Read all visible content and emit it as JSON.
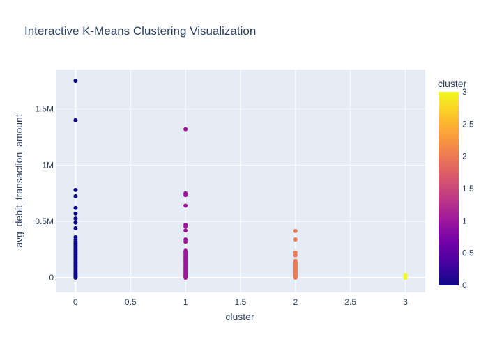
{
  "chart_data": {
    "type": "scatter",
    "title": "Interactive K-Means Clustering Visualization",
    "xlabel": "cluster",
    "ylabel": "avg_debit_transaction_amount",
    "xlim": [
      -0.18,
      3.18
    ],
    "ylim": [
      -130000,
      1850000
    ],
    "x_ticks": [
      0,
      0.5,
      1,
      1.5,
      2,
      2.5,
      3
    ],
    "x_tick_labels": [
      "0",
      "0.5",
      "1",
      "1.5",
      "2",
      "2.5",
      "3"
    ],
    "y_ticks": [
      0,
      500000,
      1000000,
      1500000
    ],
    "y_tick_labels": [
      "0",
      "0.5M",
      "1M",
      "1.5M"
    ],
    "grid": true,
    "colorbar": {
      "title": "cluster",
      "range": [
        0,
        3
      ],
      "ticks": [
        0,
        0.5,
        1,
        1.5,
        2,
        2.5,
        3
      ],
      "tick_labels": [
        "0",
        "0.5",
        "1",
        "1.5",
        "2",
        "2.5",
        "3"
      ],
      "colors": [
        "#0d0887",
        "#46039f",
        "#7201a8",
        "#9c179e",
        "#bd3786",
        "#d8576b",
        "#ed7953",
        "#fb9f3a",
        "#fdca26",
        "#f0f921"
      ]
    },
    "series": [
      {
        "name": "cluster 0",
        "x": 0,
        "color": "#0d0887",
        "values": [
          1750000,
          1400000,
          780000,
          725000,
          620000,
          570000,
          525000,
          490000,
          440000,
          360000,
          340000,
          320000,
          305000,
          290000,
          275000,
          260000,
          245000,
          230000,
          215000,
          200000,
          185000,
          170000,
          155000,
          140000,
          125000,
          110000,
          95000,
          80000,
          65000,
          50000,
          38000,
          26000,
          15000,
          6000,
          0
        ]
      },
      {
        "name": "cluster 1",
        "x": 1,
        "color": "#9c179e",
        "values": [
          1320000,
          750000,
          735000,
          640000,
          470000,
          455000,
          420000,
          340000,
          320000,
          240000,
          230000,
          220000,
          205000,
          190000,
          175000,
          160000,
          145000,
          130000,
          115000,
          100000,
          85000,
          70000,
          55000,
          40000,
          28000,
          16000,
          6000,
          0
        ]
      },
      {
        "name": "cluster 2",
        "x": 2,
        "color": "#ed7953",
        "values": [
          415000,
          340000,
          225000,
          200000,
          150000,
          140000,
          130000,
          120000,
          110000,
          100000,
          90000,
          80000,
          70000,
          60000,
          50000,
          40000,
          30000,
          20000,
          10000,
          3000,
          0
        ]
      },
      {
        "name": "cluster 3",
        "x": 3,
        "color": "#f0f921",
        "values": [
          25000,
          15000,
          8000,
          2000,
          0
        ]
      }
    ]
  }
}
